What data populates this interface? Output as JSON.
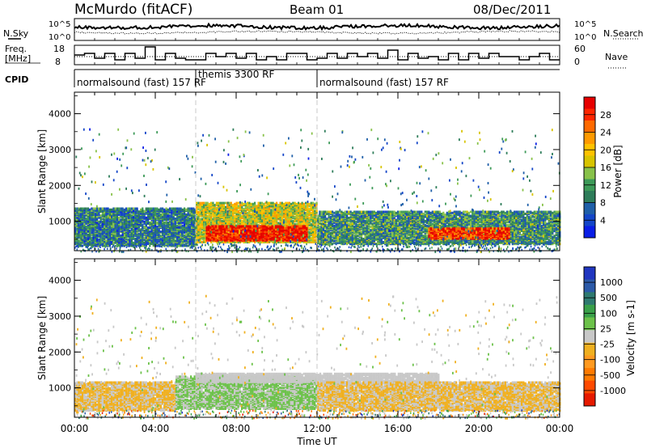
{
  "header": {
    "station": "McMurdo (fitACF)",
    "beam": "Beam 01",
    "date": "08/Dec/2011"
  },
  "left_labels": {
    "nsky": "N.Sky",
    "freq": "Freq.",
    "freq_unit": "[MHz]",
    "cpid": "CPID"
  },
  "right_labels": {
    "nsearch": "N.Search",
    "nave": "Nave"
  },
  "nsky_ticks": [
    "10^5",
    "10^0"
  ],
  "nsearch_ticks": [
    "10^5",
    "10^0"
  ],
  "freq_ticks": [
    "18",
    "8"
  ],
  "nave_ticks": [
    "60",
    "0"
  ],
  "cpid_segments": [
    {
      "label": "normalsound (fast) 157 RF",
      "start_h": 0,
      "end_h": 6
    },
    {
      "label": "themis 3300 RF",
      "start_h": 6,
      "end_h": 12
    },
    {
      "label": "normalsound (fast) 157 RF",
      "start_h": 12,
      "end_h": 24
    }
  ],
  "power_colorbar": {
    "label": "Power [dB]",
    "ticks": [
      "28",
      "24",
      "20",
      "16",
      "12",
      "8",
      "4"
    ],
    "colors": [
      "#e60000",
      "#ff2600",
      "#ff6a00",
      "#ff9a00",
      "#ffc200",
      "#d8c400",
      "#88c24a",
      "#3d9a58",
      "#2e7d5a",
      "#1f5fa8",
      "#1446c8",
      "#0a1ee6"
    ]
  },
  "velocity_colorbar": {
    "label": "Velocity [m s-1]",
    "ticks": [
      "1000",
      "500",
      "100",
      "25",
      "-25",
      "-100",
      "-500",
      "-1000"
    ],
    "colors": [
      "#2036c0",
      "#2c5aa8",
      "#2f7a70",
      "#3aa04a",
      "#6cc24a",
      "#c8c8c8",
      "#f0b020",
      "#ff9a20",
      "#ff7a00",
      "#ff4a00",
      "#e61a00"
    ]
  },
  "chart_data": [
    {
      "type": "heatmap",
      "panel": "power",
      "ylabel": "Slant Range [km]",
      "xlabel": "",
      "x_ticks": [
        "00:00",
        "04:00",
        "08:00",
        "12:00",
        "16:00",
        "20:00",
        "00:00"
      ],
      "y_ticks": [
        "1000",
        "2000",
        "3000",
        "4000"
      ],
      "xlim": [
        0,
        24
      ],
      "ylim": [
        180,
        4600
      ],
      "zlim": [
        0,
        30
      ],
      "bands": [
        {
          "t0": 0,
          "t1": 6,
          "r0": 350,
          "r1": 1400,
          "level": 8
        },
        {
          "t0": 6,
          "t1": 12,
          "r0": 450,
          "r1": 1550,
          "level": 16
        },
        {
          "t0": 6.5,
          "t1": 11.5,
          "r0": 500,
          "r1": 900,
          "level": 28
        },
        {
          "t0": 12,
          "t1": 24,
          "r0": 400,
          "r1": 1300,
          "level": 10
        },
        {
          "t0": 17.5,
          "t1": 21.5,
          "r0": 550,
          "r1": 850,
          "level": 26
        }
      ]
    },
    {
      "type": "heatmap",
      "panel": "velocity",
      "ylabel": "Slant Range [km]",
      "xlabel": "Time UT",
      "x_ticks": [
        "00:00",
        "04:00",
        "08:00",
        "12:00",
        "16:00",
        "20:00",
        "00:00"
      ],
      "y_ticks": [
        "1000",
        "2000",
        "3000",
        "4000"
      ],
      "xlim": [
        0,
        24
      ],
      "ylim": [
        180,
        4600
      ],
      "zlim": [
        -1000,
        1000
      ],
      "bands": [
        {
          "t0": 0,
          "t1": 5,
          "r0": 400,
          "r1": 1200,
          "level": -100
        },
        {
          "t0": 5,
          "t1": 12,
          "r0": 450,
          "r1": 1350,
          "level": 100
        },
        {
          "t0": 6,
          "t1": 18,
          "r0": 1200,
          "r1": 1450,
          "level": 0
        },
        {
          "t0": 12,
          "t1": 24,
          "r0": 400,
          "r1": 1200,
          "level": -100
        }
      ]
    }
  ],
  "x_axis_label": "Time UT"
}
